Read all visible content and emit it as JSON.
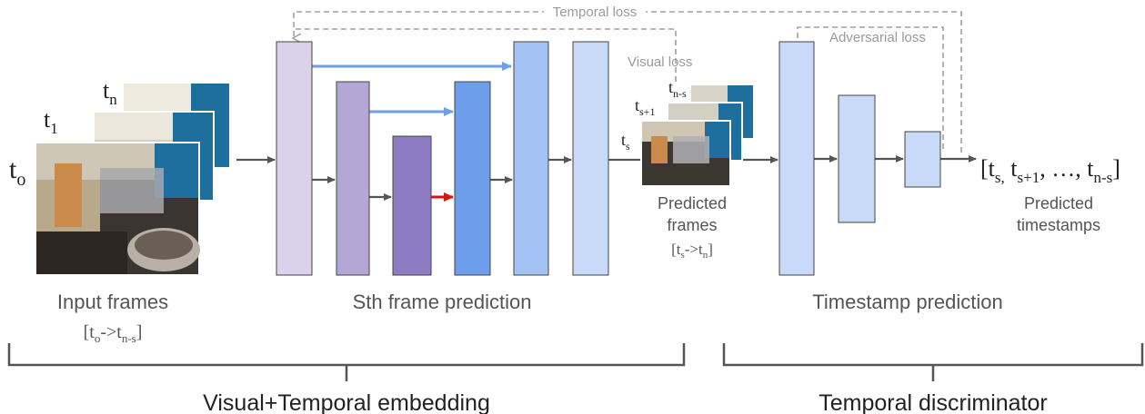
{
  "input": {
    "frame_labels": [
      "t",
      "t",
      "t"
    ],
    "frame_subscripts": [
      "o",
      "1",
      "n"
    ],
    "caption": "Input frames",
    "range_prefix": "[t",
    "range_sub1": "o",
    "range_mid": "->t",
    "range_sub2": "n-s",
    "range_suffix": "]"
  },
  "encoder": {
    "caption": "Sth frame prediction"
  },
  "predicted_frames": {
    "frame_labels": [
      "t",
      "t",
      "t"
    ],
    "frame_subscripts": [
      "s",
      "s+1",
      "n-s"
    ],
    "caption_line1": "Predicted",
    "caption_line2": "frames",
    "range_prefix": "[t",
    "range_sub1": "s",
    "range_mid": "->t",
    "range_sub2": "n",
    "range_suffix": "]"
  },
  "discriminator": {
    "caption": "Timestamp prediction"
  },
  "output": {
    "seq_open": "[t",
    "seq_sub1": "s,",
    "seq_t2": " t",
    "seq_sub2": "s+1",
    "seq_mid": ", …, t",
    "seq_sub3": "n-s",
    "seq_close": "]",
    "caption_line1": "Predicted",
    "caption_line2": "timestamps"
  },
  "losses": {
    "temporal": "Temporal loss",
    "visual": "Visual loss",
    "adversarial": "Adversarial loss"
  },
  "groups": {
    "left": "Visual+Temporal embedding",
    "right": "Temporal discriminator"
  },
  "colors": {
    "block_light_lavender": "#d9d2ea",
    "block_lavender": "#b4a7d6",
    "block_purple": "#8e7cc3",
    "block_blue": "#6d9eeb",
    "block_mid_blue": "#a4c2f4",
    "block_pale_blue": "#c9daf8",
    "skip_arrow": "#6d9eeb",
    "highlight_arrow": "#e01010",
    "flow_arrow": "#555555",
    "loss_line": "#a0a0a0"
  }
}
